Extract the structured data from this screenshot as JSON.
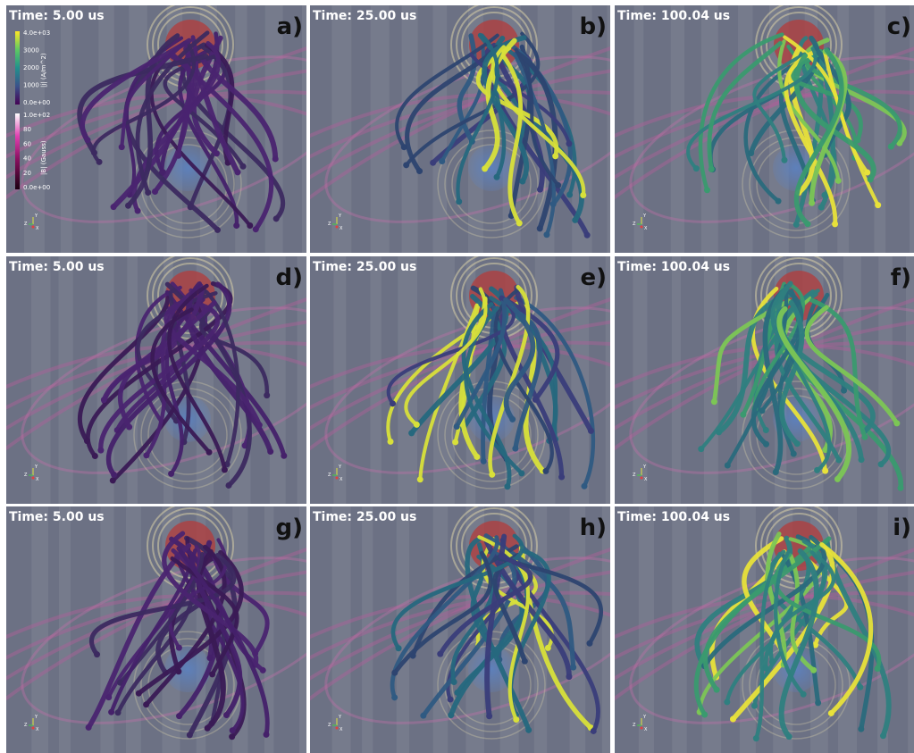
{
  "panels": [
    {
      "time": "Time: 5.00 us",
      "label": "a)"
    },
    {
      "time": "Time: 25.00 us",
      "label": "b)"
    },
    {
      "time": "Time: 100.04 us",
      "label": "c)"
    },
    {
      "time": "Time: 5.00 us",
      "label": "d)"
    },
    {
      "time": "Time: 25.00 us",
      "label": "e)"
    },
    {
      "time": "Time: 100.04 us",
      "label": "f)"
    },
    {
      "time": "Time: 5.00 us",
      "label": "g)"
    },
    {
      "time": "Time: 25.00 us",
      "label": "h)"
    },
    {
      "time": "Time: 100.04 us",
      "label": "i)"
    }
  ],
  "colorbar_j": {
    "title": "|j| (A/m^2)",
    "ticks": [
      "4.0e+03",
      "3000",
      "2000",
      "1000",
      "0.0e+00"
    ]
  },
  "colorbar_b": {
    "title": "|B| (Gauss)",
    "ticks": [
      "1.0e+02",
      "80",
      "60",
      "40",
      "20",
      "0.0e+00"
    ]
  },
  "axes_triad": [
    "Z",
    "Y",
    "X"
  ]
}
